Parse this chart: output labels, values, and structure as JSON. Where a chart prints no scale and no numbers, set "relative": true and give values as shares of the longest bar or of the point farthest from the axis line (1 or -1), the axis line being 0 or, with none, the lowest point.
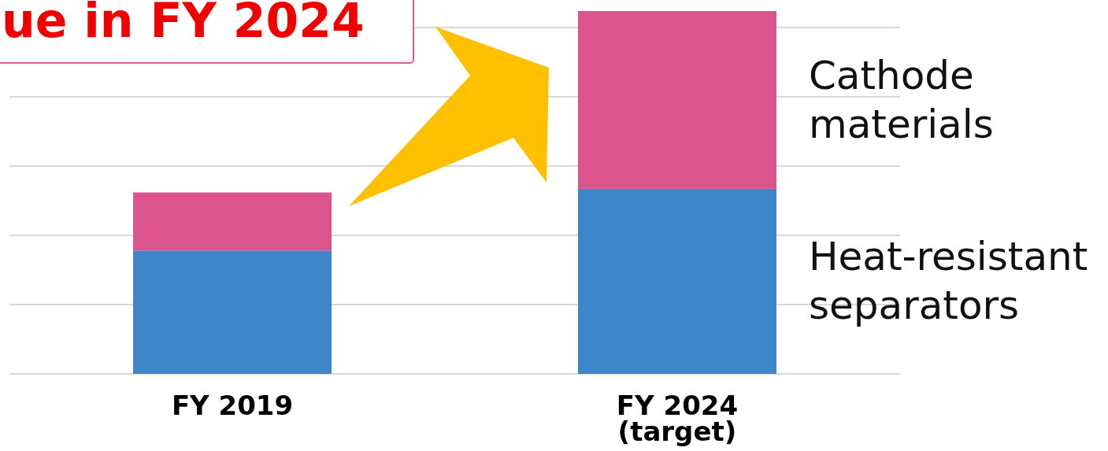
{
  "chart_data": {
    "type": "bar",
    "title": "ue in FY 2024",
    "categories": [
      "FY 2019",
      "FY 2024\n(target)"
    ],
    "stacked": true,
    "relative": true,
    "grid": "y",
    "series": [
      {
        "name": "Heat-resistant separators",
        "color": "#3d86c9",
        "values": [
          0.34,
          0.51
        ]
      },
      {
        "name": "Cathode materials",
        "color": "#db548c",
        "values": [
          0.16,
          0.49
        ]
      }
    ]
  }
}
